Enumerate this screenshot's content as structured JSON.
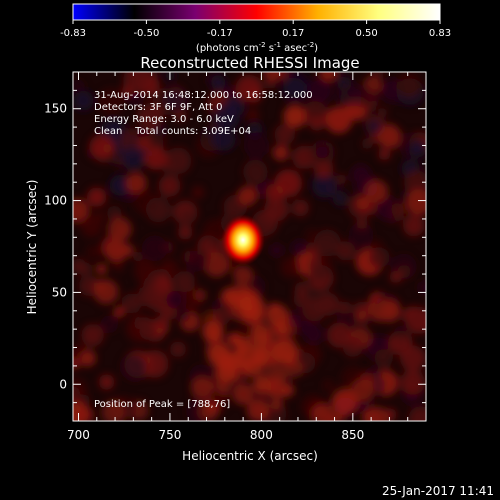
{
  "colorbar": {
    "ticks": [
      "-0.83",
      "-0.50",
      "-0.17",
      "0.17",
      "0.50",
      "0.83"
    ],
    "units_html": "(photons cm<tspan dy='-4' font-size='7'>-2</tspan><tspan dy='4'> s</tspan><tspan dy='-4' font-size='7'>-1</tspan><tspan dy='4'> asec</tspan><tspan dy='-4' font-size='7'>-2</tspan><tspan dy='4'>)</tspan>",
    "colormap": [
      "#0000ff",
      "#000000",
      "#7a0070",
      "#ff0000",
      "#ffb000",
      "#ffff80",
      "#ffffff"
    ]
  },
  "chart_data": {
    "type": "heatmap",
    "title": "Reconstructed RHESSI Image",
    "xlabel": "Heliocentric X (arcsec)",
    "ylabel": "Heliocentric Y (arcsec)",
    "xlim": [
      697,
      890
    ],
    "ylim": [
      -20,
      170
    ],
    "xticks": [
      700,
      750,
      800,
      850
    ],
    "yticks": [
      0,
      50,
      100,
      150
    ],
    "peak": {
      "x": 788,
      "y": 76
    }
  },
  "annotations": {
    "line1": "31-Aug-2014 16:48:12.000 to 16:58:12.000",
    "line2": "Detectors: 3F 6F 9F, Att 0",
    "line3": "Energy Range: 3.0 - 6.0 keV",
    "line4": "Clean    Total counts: 3.09E+04",
    "peak_label": "Position of Peak = [788,76]"
  },
  "footer": {
    "timestamp": "25-Jan-2017 11:41"
  }
}
